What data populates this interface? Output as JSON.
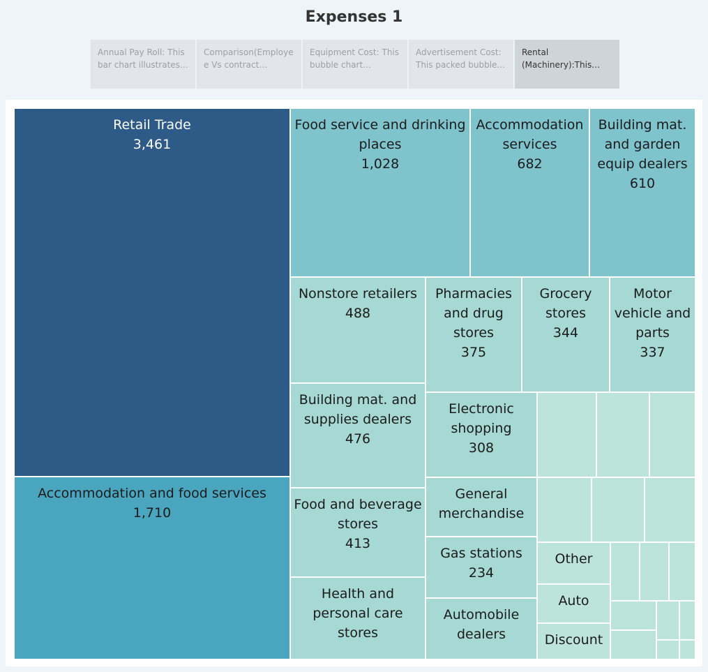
{
  "title": "Expenses 1",
  "tabs": [
    {
      "label": "Annual Pay Roll: This bar chart illustrates t..",
      "active": false
    },
    {
      "label": "Comparison(Employee Vs contract Labours): ..",
      "active": false
    },
    {
      "label": "Equipment Cost: This bubble chart visualize..",
      "active": false
    },
    {
      "label": "Advertisement Cost: This packed bubble ch..",
      "active": false
    },
    {
      "label": "Rental (Machinery):This tree..",
      "active": true
    }
  ],
  "colors": {
    "level1_retail": "#2e5a87",
    "level1_accommodation": "#4aa6bf",
    "level2_large": "#7fc3cc",
    "level2_mid": "#a6d8d4",
    "level2_small": "#bde4da"
  },
  "chart_data": {
    "type": "treemap",
    "categories": [
      {
        "name": "Retail Trade",
        "value": 3461
      },
      {
        "name": "Accommodation and food services",
        "value": 1710
      },
      {
        "name": "Food service and drinking places",
        "value": 1028
      },
      {
        "name": "Accommodation services",
        "value": 682
      },
      {
        "name": "Building mat. and garden equip dealers",
        "value": 610
      },
      {
        "name": "Nonstore retailers",
        "value": 488
      },
      {
        "name": "Pharmacies and drug stores",
        "value": 375
      },
      {
        "name": "Grocery stores",
        "value": 344
      },
      {
        "name": "Motor vehicle and parts",
        "value": 337
      },
      {
        "name": "Building mat. and supplies dealers",
        "value": 476
      },
      {
        "name": "Electronic shopping",
        "value": 308
      },
      {
        "name": "Food and beverage stores",
        "value": 413
      },
      {
        "name": "General merchandise",
        "value": null
      },
      {
        "name": "Gas stations",
        "value": 234
      },
      {
        "name": "Health and personal care stores",
        "value": null
      },
      {
        "name": "Automobile dealers",
        "value": null
      },
      {
        "name": "Other",
        "value": null
      },
      {
        "name": "Auto",
        "value": null
      },
      {
        "name": "Discount",
        "value": null
      }
    ],
    "tile_labels": [
      {
        "lines": [
          "Retail Trade",
          "3,461"
        ]
      },
      {
        "lines": [
          "Accommodation and food services",
          "1,710"
        ]
      },
      {
        "lines": [
          "Food service and drinking",
          "places",
          "1,028"
        ]
      },
      {
        "lines": [
          "Accommodation",
          "services",
          "682"
        ]
      },
      {
        "lines": [
          "Building mat.",
          "and garden",
          "equip dealers",
          "610"
        ]
      },
      {
        "lines": [
          "Nonstore retailers",
          "488"
        ]
      },
      {
        "lines": [
          "Pharmacies",
          "and drug",
          "stores",
          "375"
        ]
      },
      {
        "lines": [
          "Grocery",
          "stores",
          "344"
        ]
      },
      {
        "lines": [
          "Motor",
          "vehicle and",
          "parts",
          "337"
        ]
      },
      {
        "lines": [
          "Building mat. and",
          "supplies dealers",
          "476"
        ]
      },
      {
        "lines": [
          "Electronic",
          "shopping",
          "308"
        ]
      },
      {
        "lines": [
          "Food and beverage",
          "stores",
          "413"
        ]
      },
      {
        "lines": [
          "General",
          "merchandise"
        ]
      },
      {
        "lines": [
          "Gas stations",
          "234"
        ]
      },
      {
        "lines": [
          "Health and",
          "personal care",
          "stores"
        ]
      },
      {
        "lines": [
          "Automobile",
          "dealers"
        ]
      },
      {
        "lines": [
          "Other"
        ]
      },
      {
        "lines": [
          "Auto"
        ]
      },
      {
        "lines": [
          "Discount"
        ]
      }
    ],
    "unlabeled_tiles": 15
  }
}
